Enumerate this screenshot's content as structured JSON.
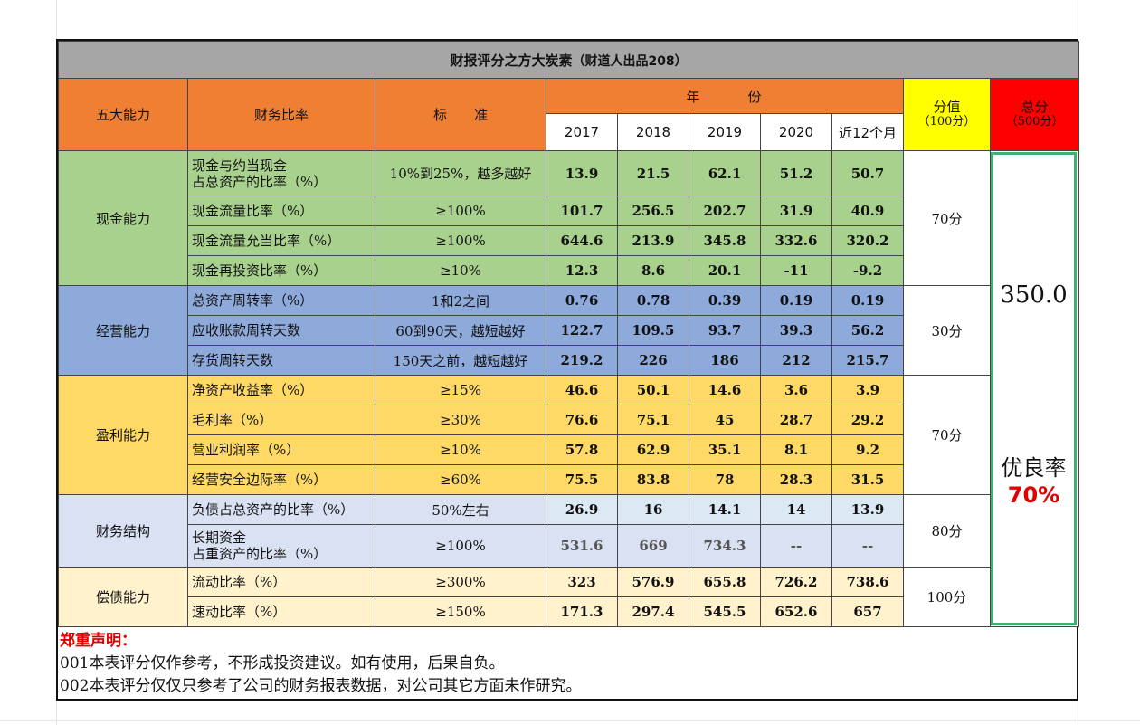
{
  "title": "财报评分之方大炭素",
  "subtitle": "（财道人出品208）",
  "headers": {
    "ability": "五大能力",
    "ratio": "财务比率",
    "standard": "标　　准",
    "year": "年　　　份",
    "score": "分值",
    "score_sub": "（100分）",
    "total": "总分",
    "total_sub": "（500分）"
  },
  "years": [
    "2017",
    "2018",
    "2019",
    "2020",
    "近12个月"
  ],
  "groups": [
    {
      "name": "现金能力",
      "score": "70分",
      "rows": [
        {
          "ratio": [
            "现金与约当现金",
            "占总资产的比率（%）"
          ],
          "standard": "10%到25%，越多越好",
          "values": [
            "13.9",
            "21.5",
            "62.1",
            "51.2",
            "50.7"
          ]
        },
        {
          "ratio": [
            "现金流量比率（%）"
          ],
          "standard": "≥100%",
          "values": [
            "101.7",
            "256.5",
            "202.7",
            "31.9",
            "40.9"
          ]
        },
        {
          "ratio": [
            "现金流量允当比率（%）"
          ],
          "standard": "≥100%",
          "values": [
            "644.6",
            "213.9",
            "345.8",
            "332.6",
            "320.2"
          ]
        },
        {
          "ratio": [
            "现金再投资比率（%）"
          ],
          "standard": "≥10%",
          "values": [
            "12.3",
            "8.6",
            "20.1",
            "-11",
            "-9.2"
          ]
        }
      ]
    },
    {
      "name": "经营能力",
      "score": "30分",
      "rows": [
        {
          "ratio": [
            "总资产周转率（%）"
          ],
          "standard": "1和2之间",
          "values": [
            "0.76",
            "0.78",
            "0.39",
            "0.19",
            "0.19"
          ]
        },
        {
          "ratio": [
            "应收账款周转天数"
          ],
          "standard": "60到90天，越短越好",
          "values": [
            "122.7",
            "109.5",
            "93.7",
            "39.3",
            "56.2"
          ]
        },
        {
          "ratio": [
            "存货周转天数"
          ],
          "standard": "150天之前，越短越好",
          "values": [
            "219.2",
            "226",
            "186",
            "212",
            "215.7"
          ]
        }
      ]
    },
    {
      "name": "盈利能力",
      "score": "70分",
      "rows": [
        {
          "ratio": [
            "净资产收益率（%）"
          ],
          "standard": "≥15%",
          "values": [
            "46.6",
            "50.1",
            "14.6",
            "3.6",
            "3.9"
          ]
        },
        {
          "ratio": [
            "毛利率（%）"
          ],
          "standard": "≥30%",
          "values": [
            "76.6",
            "75.1",
            "45",
            "28.7",
            "29.2"
          ]
        },
        {
          "ratio": [
            "营业利润率（%）"
          ],
          "standard": "≥10%",
          "values": [
            "57.8",
            "62.9",
            "35.1",
            "8.1",
            "9.2"
          ]
        },
        {
          "ratio": [
            "经营安全边际率（%）"
          ],
          "standard": "≥60%",
          "values": [
            "75.5",
            "83.8",
            "78",
            "28.3",
            "31.5"
          ]
        }
      ]
    },
    {
      "name": "财务结构",
      "score": "80分",
      "rows": [
        {
          "ratio": [
            "负债占总资产的比率（%）"
          ],
          "standard": "50%左右",
          "values": [
            "26.9",
            "16",
            "14.1",
            "14",
            "13.9"
          ]
        },
        {
          "ratio": [
            "长期资金",
            "占重资产的比率（%）"
          ],
          "standard": "≥100%",
          "values": [
            "531.6",
            "669",
            "734.3",
            "--",
            "--"
          ]
        }
      ]
    },
    {
      "name": "偿债能力",
      "score": "100分",
      "rows": [
        {
          "ratio": [
            "流动比率（%）"
          ],
          "standard": "≥300%",
          "values": [
            "323",
            "576.9",
            "655.8",
            "726.2",
            "738.6"
          ]
        },
        {
          "ratio": [
            "速动比率（%）"
          ],
          "standard": "≥150%",
          "values": [
            "171.3",
            "297.4",
            "545.5",
            "652.6",
            "657"
          ]
        }
      ]
    }
  ],
  "total_value": "350.0",
  "rate_label": "优良率",
  "rate_value": "70%",
  "notes": {
    "warning": "郑重声明：",
    "line1": "001本表评分仅作参考，不形成投资建议。如有使用，后果自负。",
    "line2": "002本表评分仅仅只参考了公司的财务报表数据，对公司其它方面未作研究。"
  },
  "colors": {
    "title_bg": "#a6a6a6",
    "header_orange": "#ef7f32",
    "score_yellow": "#ffff00",
    "total_red": "#ff0000",
    "cash_green": "#a9d18e",
    "operation_blue": "#8eaadb",
    "profit_yellow": "#ffd966",
    "structure_lavender": "#d9e1f2",
    "solvency_cream": "#fff2cc",
    "total_border": "#3cb371",
    "warning_red": "#e00000"
  }
}
